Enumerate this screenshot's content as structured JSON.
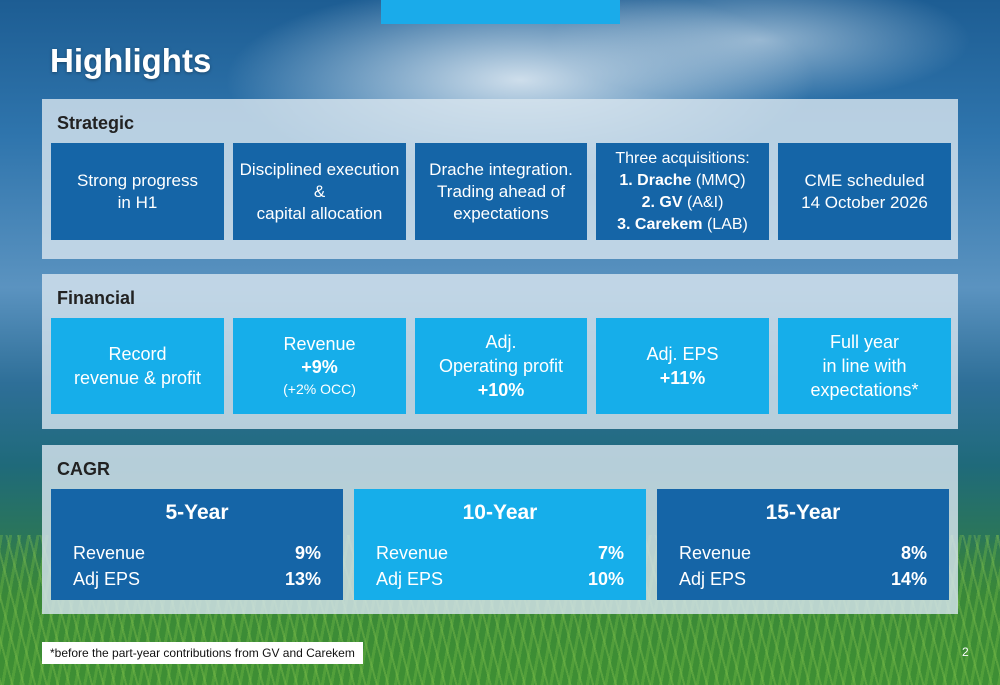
{
  "title": "Highlights",
  "strategic": {
    "label": "Strategic",
    "cards": [
      {
        "lines": [
          "Strong progress",
          "in H1"
        ]
      },
      {
        "lines": [
          "Disciplined execution",
          "&",
          "capital allocation"
        ]
      },
      {
        "lines": [
          "Drache integration.",
          "Trading ahead of",
          "expectations"
        ]
      },
      {
        "heading": "Three acquisitions:",
        "items": [
          {
            "bold": "1. Drache",
            "rest": " (MMQ)"
          },
          {
            "bold": "2. GV",
            "rest": " (A&I)"
          },
          {
            "bold": "3. Carekem",
            "rest": " (LAB)"
          }
        ]
      },
      {
        "lines": [
          "CME scheduled",
          "14 October 2026"
        ]
      }
    ]
  },
  "financial": {
    "label": "Financial",
    "cards": [
      {
        "lines": [
          "Record",
          "revenue & profit"
        ]
      },
      {
        "line1": "Revenue",
        "value": "+9%",
        "note": "(+2% OCC)"
      },
      {
        "line1": "Adj.",
        "line2": "Operating profit",
        "value": "+10%"
      },
      {
        "line1": "Adj. EPS",
        "value": "+11%"
      },
      {
        "lines": [
          "Full year",
          "in line with",
          "expectations*"
        ]
      }
    ]
  },
  "cagr": {
    "label": "CAGR",
    "periods": [
      {
        "title": "5-Year",
        "revenue_label": "Revenue",
        "revenue": "9%",
        "eps_label": "Adj EPS",
        "eps": "13%"
      },
      {
        "title": "10-Year",
        "revenue_label": "Revenue",
        "revenue": "7%",
        "eps_label": "Adj EPS",
        "eps": "10%"
      },
      {
        "title": "15-Year",
        "revenue_label": "Revenue",
        "revenue": "8%",
        "eps_label": "Adj EPS",
        "eps": "14%"
      }
    ]
  },
  "footnote": "*before the part-year contributions from GV and Carekem",
  "page_number": "2",
  "colors": {
    "dark_card": "#1565a7",
    "light_card": "#16aeea",
    "accent_tab": "#1aabea"
  }
}
